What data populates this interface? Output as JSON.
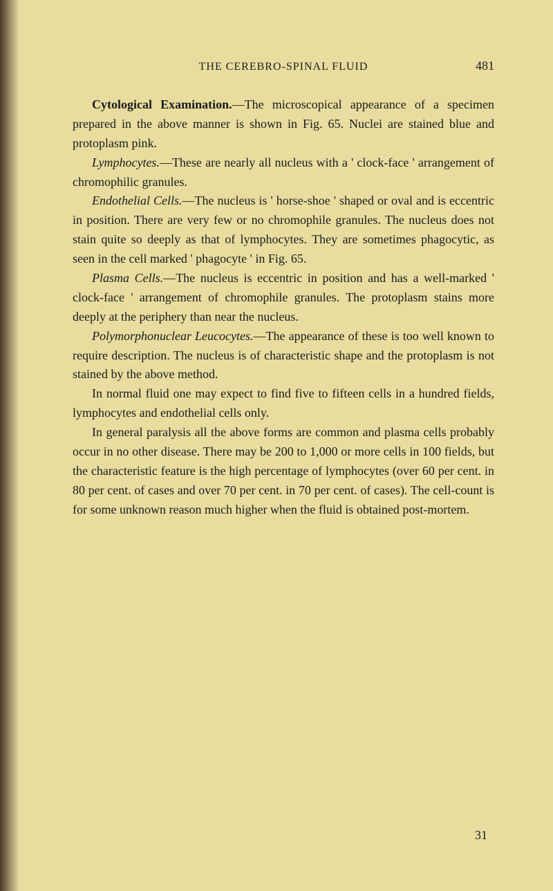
{
  "page": {
    "running_header": "THE CEREBRO-SPINAL FLUID",
    "page_number": "481",
    "footer_number": "31",
    "paragraphs": [
      {
        "bold_lead": "Cytological Examination.",
        "rest": "—The microscopical appearance of a specimen prepared in the above manner is shown in Fig. 65. Nuclei are stained blue and protoplasm pink."
      },
      {
        "italic_lead": "Lymphocytes.",
        "rest": "—These are nearly all nucleus with a ' clock-face ' arrangement of chromophilic granules."
      },
      {
        "italic_lead": "Endothelial Cells.",
        "rest": "—The nucleus is ' horse-shoe ' shaped or oval and is eccentric in position. There are very few or no chromophile granules. The nucleus does not stain quite so deeply as that of lymphocytes. They are sometimes phagocytic, as seen in the cell marked ' phagocyte ' in Fig. 65."
      },
      {
        "italic_lead": "Plasma Cells.",
        "rest": "—The nucleus is eccentric in position and has a well-marked ' clock-face ' arrangement of chromophile granules. The protoplasm stains more deeply at the periphery than near the nucleus."
      },
      {
        "italic_lead": "Polymorphonuclear Leucocytes.",
        "rest": "—The appearance of these is too well known to require description. The nucleus is of characteristic shape and the protoplasm is not stained by the above method."
      },
      {
        "plain": "In normal fluid one may expect to find five to fifteen cells in a hundred fields, lymphocytes and endothelial cells only."
      },
      {
        "plain": "In general paralysis all the above forms are common and plasma cells probably occur in no other disease. There may be 200 to 1,000 or more cells in 100 fields, but the characteristic feature is the high percentage of lymphocytes (over 60 per cent. in 80 per cent. of cases and over 70 per cent. in 70 per cent. of cases). The cell-count is for some unknown reason much higher when the fluid is obtained post-mortem."
      }
    ]
  },
  "colors": {
    "background": "#e8dd9f",
    "text": "#1a1a1a",
    "edge_dark": "#4a3a28"
  }
}
